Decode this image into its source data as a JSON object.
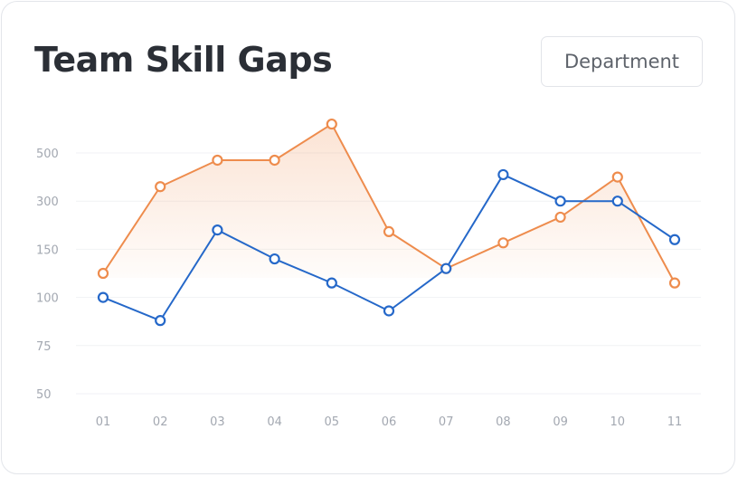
{
  "header": {
    "title": "Team Skill Gaps",
    "filter_label": "Department"
  },
  "colors": {
    "blue": "#2568c9",
    "orange": "#ee8c4d",
    "grid": "#f1f2f4",
    "tick": "#a3a8b1"
  },
  "chart_data": {
    "type": "line",
    "x": [
      "01",
      "02",
      "03",
      "04",
      "05",
      "06",
      "07",
      "08",
      "09",
      "10",
      "11"
    ],
    "y_ticks": [
      50,
      75,
      100,
      150,
      300,
      500
    ],
    "grid": true,
    "legend": "none",
    "series": [
      {
        "color": "#ee8c4d",
        "area": true,
        "values": [
          125,
          360,
          470,
          470,
          620,
          205,
          130,
          170,
          250,
          400,
          115
        ]
      },
      {
        "color": "#2568c9",
        "area": false,
        "values": [
          100,
          88,
          210,
          140,
          115,
          93,
          130,
          410,
          300,
          300,
          180
        ]
      }
    ]
  }
}
